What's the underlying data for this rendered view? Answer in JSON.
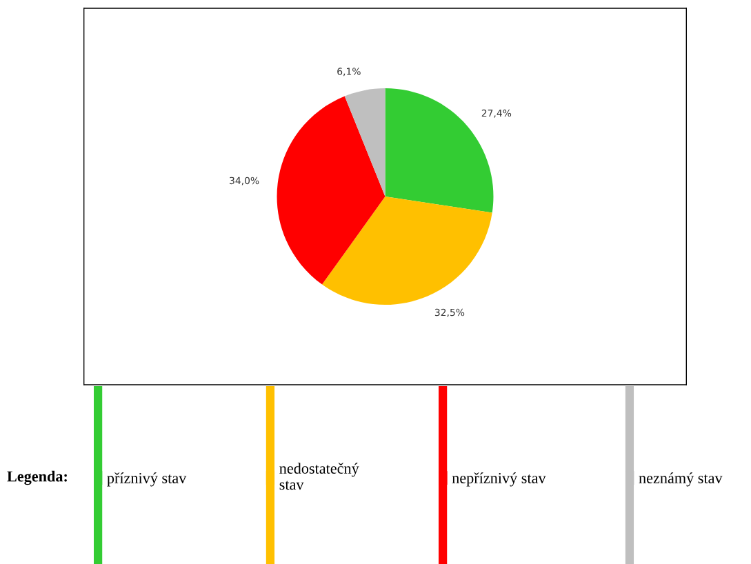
{
  "chart_data": {
    "type": "pie",
    "categories": [
      "příznivý stav",
      "nedostatečný\nstav",
      "nepříznivý stav",
      "neznámý stav"
    ],
    "values": [
      27.4,
      32.5,
      34.0,
      6.1
    ],
    "value_labels": [
      "27,4%",
      "32,5%",
      "34,0%",
      "6,1%"
    ],
    "colors": [
      "#33cc33",
      "#ffc000",
      "#ff0000",
      "#bfbfbf"
    ],
    "legend_title": "Legenda:",
    "legend": "bottom"
  }
}
